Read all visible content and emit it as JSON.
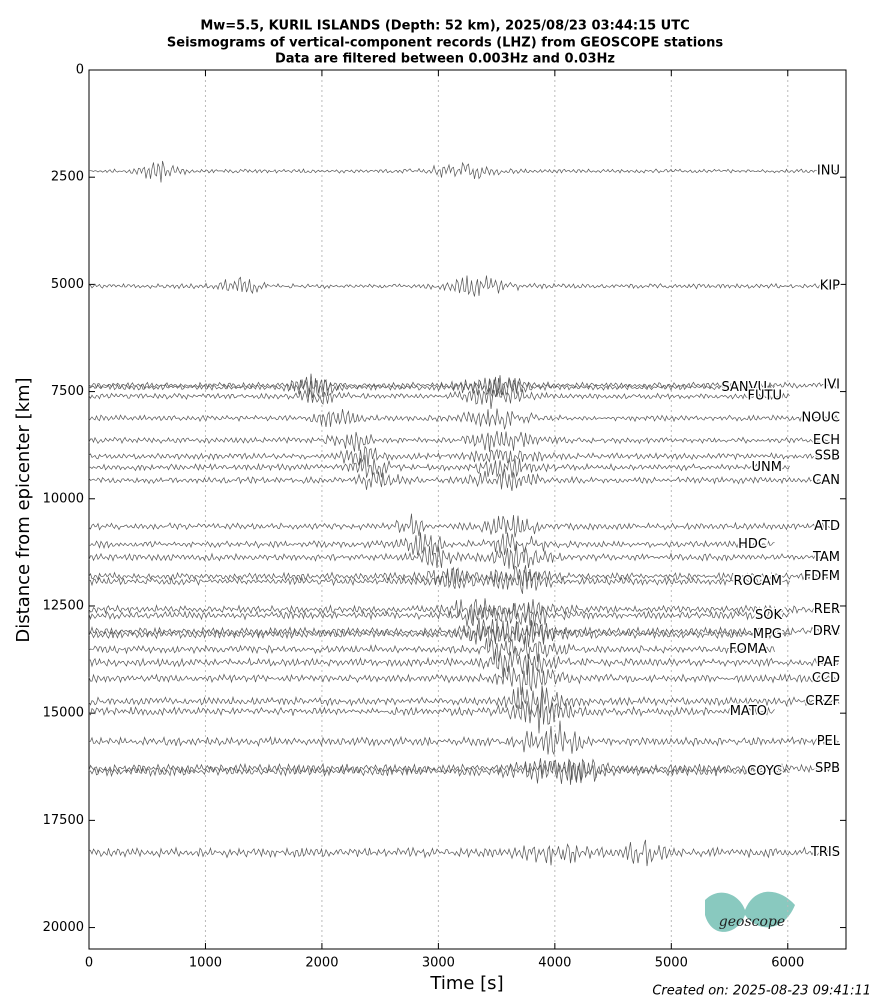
{
  "chart_data": {
    "type": "seismogram",
    "title": [
      "Mw=5.5, KURIL ISLANDS (Depth: 52 km), 2025/08/23 03:44:15 UTC",
      "Seismograms of vertical-component records (LHZ) from GEOSCOPE stations",
      "Data are filtered between 0.003Hz and 0.03Hz"
    ],
    "x_label": "Time [s]",
    "y_label": "Distance from epicenter [km]",
    "xlim": [
      0,
      6500
    ],
    "xticks": [
      0,
      1000,
      2000,
      3000,
      4000,
      5000,
      6000
    ],
    "ylim": [
      0,
      20500
    ],
    "yticks": [
      0,
      2500,
      5000,
      7500,
      10000,
      12500,
      15000,
      17500,
      20000
    ],
    "y_inverted": true,
    "grid": true,
    "color": "#555555",
    "stations": [
      {
        "name": "INU",
        "distance": 2357
      },
      {
        "name": "KIP",
        "distance": 5041
      },
      {
        "name": "IVI",
        "distance": 7351
      },
      {
        "name": "SANVU",
        "distance": 7400
      },
      {
        "name": "FUTU",
        "distance": 7608
      },
      {
        "name": "NOUC",
        "distance": 8121
      },
      {
        "name": "ECH",
        "distance": 8635
      },
      {
        "name": "SSB",
        "distance": 9008
      },
      {
        "name": "UNM",
        "distance": 9265
      },
      {
        "name": "CAN",
        "distance": 9568
      },
      {
        "name": "ATD",
        "distance": 10642
      },
      {
        "name": "HDC",
        "distance": 11062
      },
      {
        "name": "TAM",
        "distance": 11365
      },
      {
        "name": "FDFM",
        "distance": 11809
      },
      {
        "name": "ROCAM",
        "distance": 11925
      },
      {
        "name": "RER",
        "distance": 12579
      },
      {
        "name": "SOK",
        "distance": 12719
      },
      {
        "name": "DRV",
        "distance": 13092
      },
      {
        "name": "MPG",
        "distance": 13162
      },
      {
        "name": "FOMA",
        "distance": 13512
      },
      {
        "name": "PAF",
        "distance": 13816
      },
      {
        "name": "CCD",
        "distance": 14189
      },
      {
        "name": "CRZF",
        "distance": 14726
      },
      {
        "name": "MATO",
        "distance": 14959
      },
      {
        "name": "PEL",
        "distance": 15660
      },
      {
        "name": "SPB",
        "distance": 16289
      },
      {
        "name": "COYC",
        "distance": 16359
      },
      {
        "name": "TRIS",
        "distance": 18250
      }
    ],
    "logo": "geoscope",
    "footer": "Created on: 2025-08-23 09:41:11"
  }
}
